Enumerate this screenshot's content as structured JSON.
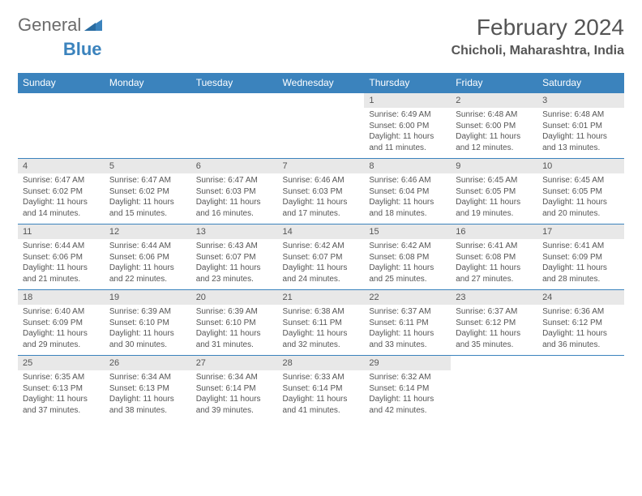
{
  "logo": {
    "part1": "General",
    "part2": "Blue"
  },
  "title": "February 2024",
  "location": "Chicholi, Maharashtra, India",
  "colors": {
    "header_bg": "#3b83bd",
    "header_text": "#ffffff",
    "daynum_bg": "#e8e8e8",
    "text": "#555555",
    "logo_gray": "#6b6b6b",
    "logo_blue": "#3b83bd"
  },
  "day_names": [
    "Sunday",
    "Monday",
    "Tuesday",
    "Wednesday",
    "Thursday",
    "Friday",
    "Saturday"
  ],
  "weeks": [
    [
      null,
      null,
      null,
      null,
      {
        "n": "1",
        "sr": "6:49 AM",
        "ss": "6:00 PM",
        "dl": "11 hours and 11 minutes."
      },
      {
        "n": "2",
        "sr": "6:48 AM",
        "ss": "6:00 PM",
        "dl": "11 hours and 12 minutes."
      },
      {
        "n": "3",
        "sr": "6:48 AM",
        "ss": "6:01 PM",
        "dl": "11 hours and 13 minutes."
      }
    ],
    [
      {
        "n": "4",
        "sr": "6:47 AM",
        "ss": "6:02 PM",
        "dl": "11 hours and 14 minutes."
      },
      {
        "n": "5",
        "sr": "6:47 AM",
        "ss": "6:02 PM",
        "dl": "11 hours and 15 minutes."
      },
      {
        "n": "6",
        "sr": "6:47 AM",
        "ss": "6:03 PM",
        "dl": "11 hours and 16 minutes."
      },
      {
        "n": "7",
        "sr": "6:46 AM",
        "ss": "6:03 PM",
        "dl": "11 hours and 17 minutes."
      },
      {
        "n": "8",
        "sr": "6:46 AM",
        "ss": "6:04 PM",
        "dl": "11 hours and 18 minutes."
      },
      {
        "n": "9",
        "sr": "6:45 AM",
        "ss": "6:05 PM",
        "dl": "11 hours and 19 minutes."
      },
      {
        "n": "10",
        "sr": "6:45 AM",
        "ss": "6:05 PM",
        "dl": "11 hours and 20 minutes."
      }
    ],
    [
      {
        "n": "11",
        "sr": "6:44 AM",
        "ss": "6:06 PM",
        "dl": "11 hours and 21 minutes."
      },
      {
        "n": "12",
        "sr": "6:44 AM",
        "ss": "6:06 PM",
        "dl": "11 hours and 22 minutes."
      },
      {
        "n": "13",
        "sr": "6:43 AM",
        "ss": "6:07 PM",
        "dl": "11 hours and 23 minutes."
      },
      {
        "n": "14",
        "sr": "6:42 AM",
        "ss": "6:07 PM",
        "dl": "11 hours and 24 minutes."
      },
      {
        "n": "15",
        "sr": "6:42 AM",
        "ss": "6:08 PM",
        "dl": "11 hours and 25 minutes."
      },
      {
        "n": "16",
        "sr": "6:41 AM",
        "ss": "6:08 PM",
        "dl": "11 hours and 27 minutes."
      },
      {
        "n": "17",
        "sr": "6:41 AM",
        "ss": "6:09 PM",
        "dl": "11 hours and 28 minutes."
      }
    ],
    [
      {
        "n": "18",
        "sr": "6:40 AM",
        "ss": "6:09 PM",
        "dl": "11 hours and 29 minutes."
      },
      {
        "n": "19",
        "sr": "6:39 AM",
        "ss": "6:10 PM",
        "dl": "11 hours and 30 minutes."
      },
      {
        "n": "20",
        "sr": "6:39 AM",
        "ss": "6:10 PM",
        "dl": "11 hours and 31 minutes."
      },
      {
        "n": "21",
        "sr": "6:38 AM",
        "ss": "6:11 PM",
        "dl": "11 hours and 32 minutes."
      },
      {
        "n": "22",
        "sr": "6:37 AM",
        "ss": "6:11 PM",
        "dl": "11 hours and 33 minutes."
      },
      {
        "n": "23",
        "sr": "6:37 AM",
        "ss": "6:12 PM",
        "dl": "11 hours and 35 minutes."
      },
      {
        "n": "24",
        "sr": "6:36 AM",
        "ss": "6:12 PM",
        "dl": "11 hours and 36 minutes."
      }
    ],
    [
      {
        "n": "25",
        "sr": "6:35 AM",
        "ss": "6:13 PM",
        "dl": "11 hours and 37 minutes."
      },
      {
        "n": "26",
        "sr": "6:34 AM",
        "ss": "6:13 PM",
        "dl": "11 hours and 38 minutes."
      },
      {
        "n": "27",
        "sr": "6:34 AM",
        "ss": "6:14 PM",
        "dl": "11 hours and 39 minutes."
      },
      {
        "n": "28",
        "sr": "6:33 AM",
        "ss": "6:14 PM",
        "dl": "11 hours and 41 minutes."
      },
      {
        "n": "29",
        "sr": "6:32 AM",
        "ss": "6:14 PM",
        "dl": "11 hours and 42 minutes."
      },
      null,
      null
    ]
  ],
  "labels": {
    "sunrise": "Sunrise:",
    "sunset": "Sunset:",
    "daylight": "Daylight:"
  }
}
